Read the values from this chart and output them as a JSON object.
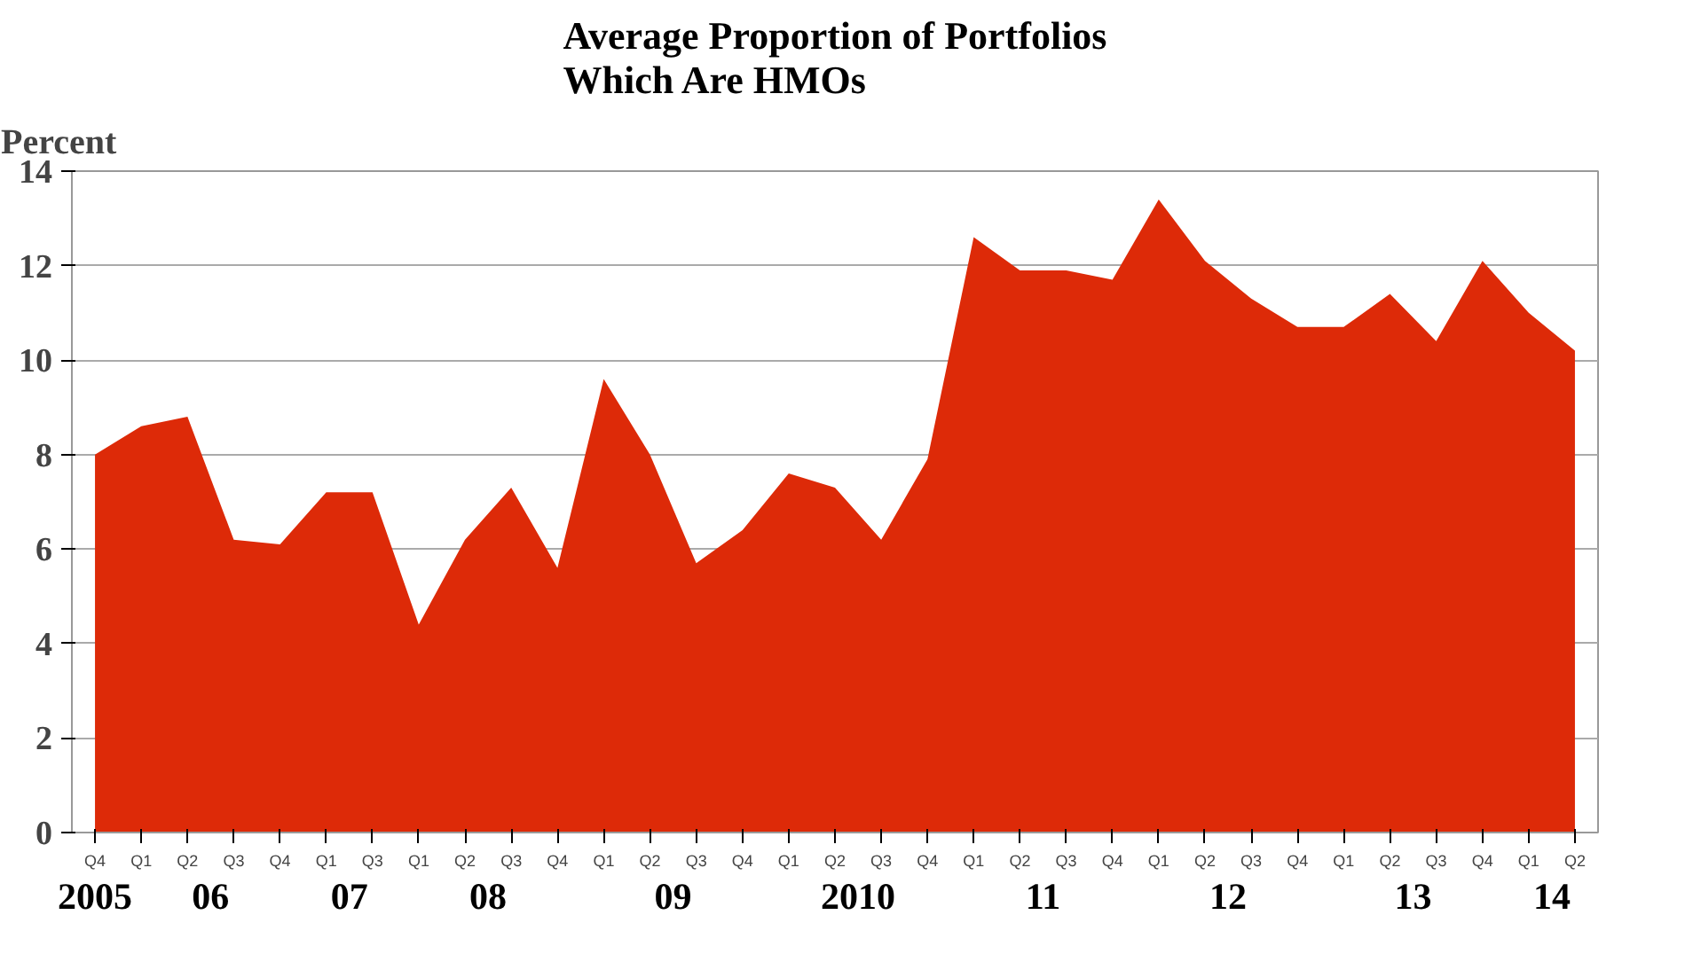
{
  "chart_data": {
    "type": "area",
    "title": "Average Proportion of Portfolios\nWhich  Are HMOs",
    "ylabel": "Percent",
    "categories": [
      "Q4",
      "Q1",
      "Q2",
      "Q3",
      "Q4",
      "Q1",
      "Q3",
      "Q1",
      "Q2",
      "Q3",
      "Q4",
      "Q1",
      "Q2",
      "Q3",
      "Q4",
      "Q1",
      "Q2",
      "Q3",
      "Q4",
      "Q1",
      "Q2",
      "Q3",
      "Q4",
      "Q1",
      "Q2",
      "Q3",
      "Q4",
      "Q1",
      "Q2",
      "Q3",
      "Q4",
      "Q1",
      "Q2"
    ],
    "annotations": [
      "2005",
      "06",
      "07",
      "08",
      "09",
      "2010",
      "11",
      "12",
      "13",
      "14"
    ],
    "series": [
      {
        "color": "#dd2a08",
        "values": [
          8.0,
          8.6,
          8.8,
          6.2,
          6.1,
          7.2,
          7.2,
          4.4,
          6.2,
          7.3,
          5.6,
          9.6,
          8.0,
          5.7,
          6.4,
          7.6,
          7.3,
          6.2,
          7.9,
          12.6,
          11.9,
          11.9,
          11.7,
          13.4,
          12.1,
          11.3,
          10.7,
          10.7,
          11.4,
          10.4,
          12.1,
          11.0,
          10.2
        ]
      }
    ],
    "ylim": [
      0,
      14
    ],
    "yticks": [
      0,
      2,
      4,
      6,
      8,
      10,
      12,
      14
    ],
    "grid": "y"
  }
}
